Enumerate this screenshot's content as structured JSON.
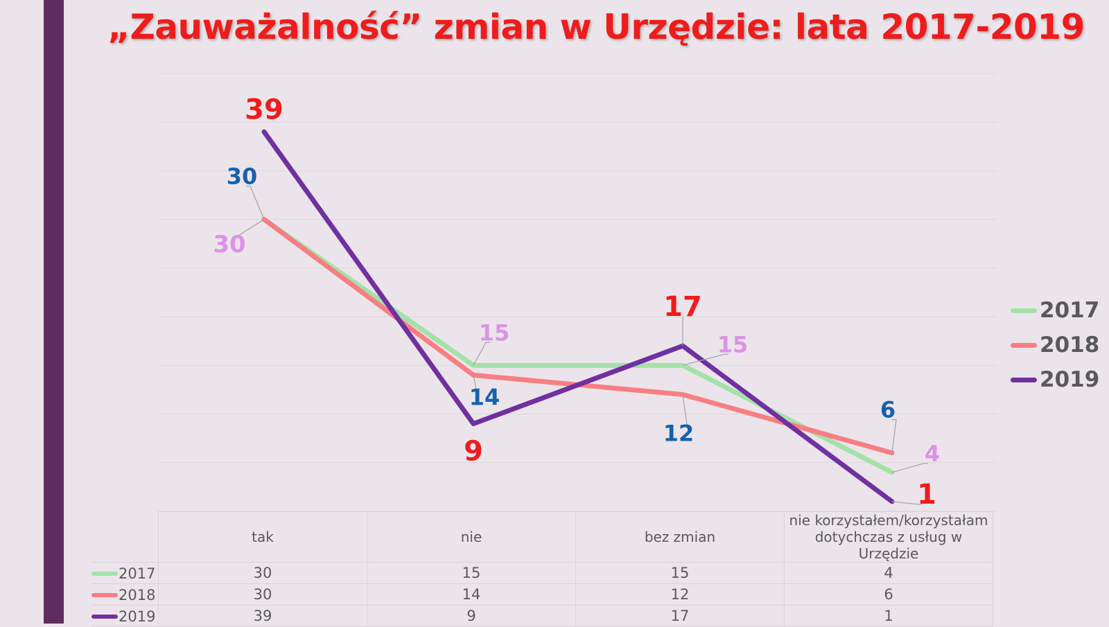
{
  "title": "„Zauważalność” zmian w Urzędzie: lata 2017-2019",
  "chart_data": {
    "type": "line",
    "title": "„Zauważalność” zmian w Urzędzie: lata 2017-2019",
    "categories": [
      "tak",
      "nie",
      "bez zmian",
      "nie korzystałem/korzystałam dotychczas z usług w Urzędzie"
    ],
    "category_lines": [
      [
        "tak"
      ],
      [
        "nie"
      ],
      [
        "bez zmian"
      ],
      [
        "nie korzystałem/korzystałam",
        "dotychczas z usług w Urzędzie"
      ]
    ],
    "ylim": [
      0,
      45
    ],
    "grid": true,
    "legend_position": "right",
    "series": [
      {
        "name": "2017",
        "values": [
          30,
          15,
          15,
          4
        ],
        "color": "#a4e1a9",
        "label_color": "#dc92e6"
      },
      {
        "name": "2018",
        "values": [
          30,
          14,
          12,
          6
        ],
        "color": "#f87e83",
        "label_color": "#1561ae"
      },
      {
        "name": "2019",
        "values": [
          39,
          9,
          17,
          1
        ],
        "color": "#7030a0",
        "label_color": "#ee1c1c"
      }
    ]
  },
  "colors": {
    "accent_bar": "#5f2c5e",
    "title": "#ee1c1c",
    "background": "#ebe5eb"
  }
}
